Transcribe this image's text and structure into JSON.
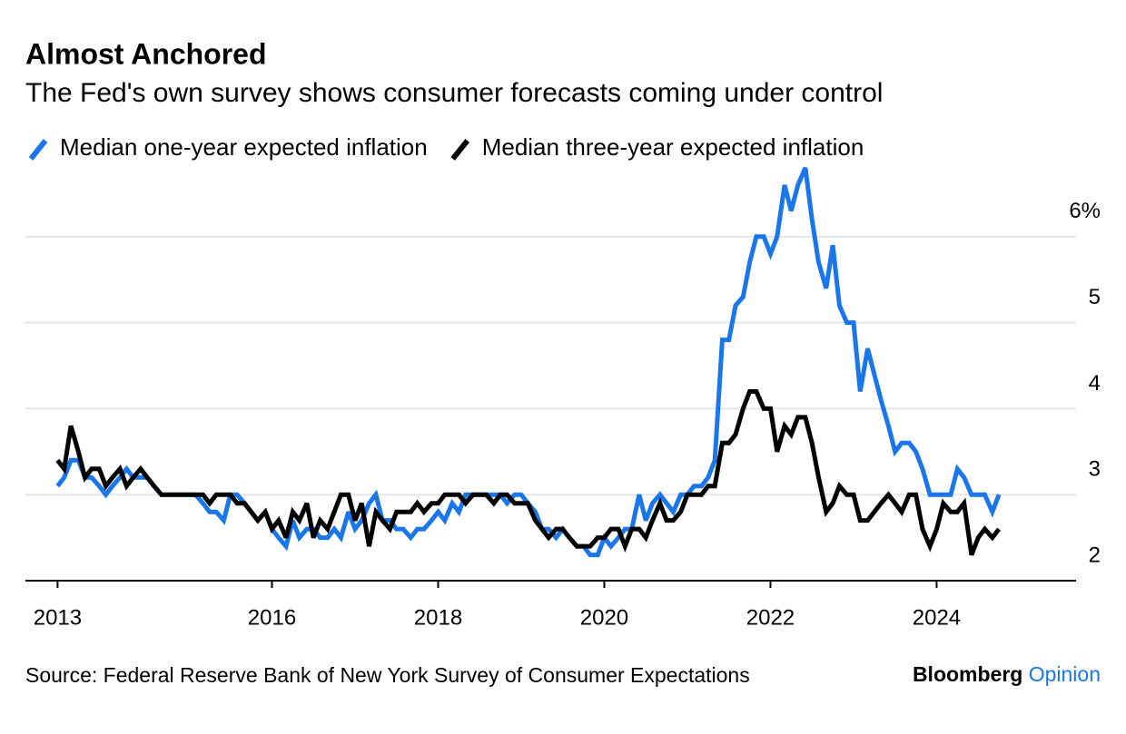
{
  "chart_data": {
    "type": "line",
    "title": "Almost Anchored",
    "subtitle": "The Fed's own survey shows consumer forecasts coming under control",
    "source": "Source: Federal Reserve Bank of New York Survey of Consumer Expectations",
    "brand": [
      "Bloomberg",
      "Opinion"
    ],
    "x": [
      2013.42,
      2013.5,
      2013.58,
      2013.67,
      2013.75,
      2013.83,
      2013.92,
      2014,
      2014.08,
      2014.17,
      2014.25,
      2014.33,
      2014.42,
      2014.5,
      2014.58,
      2014.67,
      2014.75,
      2014.83,
      2014.92,
      2015,
      2015.08,
      2015.17,
      2015.25,
      2015.33,
      2015.42,
      2015.5,
      2015.58,
      2015.67,
      2015.75,
      2015.83,
      2015.92,
      2016,
      2016.08,
      2016.17,
      2016.25,
      2016.33,
      2016.42,
      2016.5,
      2016.58,
      2016.67,
      2016.75,
      2016.83,
      2016.92,
      2017,
      2017.08,
      2017.17,
      2017.25,
      2017.33,
      2017.42,
      2017.5,
      2017.58,
      2017.67,
      2017.75,
      2017.83,
      2017.92,
      2018,
      2018.08,
      2018.17,
      2018.25,
      2018.33,
      2018.42,
      2018.5,
      2018.58,
      2018.67,
      2018.75,
      2018.83,
      2018.92,
      2019,
      2019.08,
      2019.17,
      2019.25,
      2019.33,
      2019.42,
      2019.5,
      2019.58,
      2019.67,
      2019.75,
      2019.83,
      2019.92,
      2020,
      2020.08,
      2020.17,
      2020.25,
      2020.33,
      2020.42,
      2020.5,
      2020.58,
      2020.67,
      2020.75,
      2020.83,
      2020.92,
      2021,
      2021.08,
      2021.17,
      2021.25,
      2021.33,
      2021.42,
      2021.5,
      2021.58,
      2021.67,
      2021.75,
      2021.83,
      2021.92,
      2022,
      2022.08,
      2022.17,
      2022.25,
      2022.33,
      2022.42,
      2022.5,
      2022.58,
      2022.67,
      2022.75,
      2022.83,
      2022.92,
      2023,
      2023.08,
      2023.17,
      2023.25,
      2023.33,
      2023.42,
      2023.5,
      2023.58,
      2023.67,
      2023.75,
      2023.83,
      2023.92,
      2024,
      2024.08,
      2024.17,
      2024.25,
      2024.33,
      2024.42,
      2024.5,
      2024.58,
      2024.67,
      2024.75
    ],
    "series": [
      {
        "name": "Median one-year expected inflation",
        "color": "#1a76eb",
        "values": [
          3.1,
          3.2,
          3.4,
          3.4,
          3.2,
          3.2,
          3.1,
          3.0,
          3.1,
          3.2,
          3.3,
          3.2,
          3.2,
          3.2,
          3.1,
          3.0,
          3.0,
          3.0,
          3.0,
          3.0,
          3.0,
          2.9,
          2.8,
          2.8,
          2.7,
          3.0,
          3.0,
          2.9,
          2.8,
          2.7,
          2.8,
          2.6,
          2.5,
          2.4,
          2.7,
          2.5,
          2.6,
          2.6,
          2.5,
          2.5,
          2.6,
          2.5,
          2.8,
          2.6,
          2.7,
          2.9,
          3.0,
          2.7,
          2.7,
          2.6,
          2.6,
          2.5,
          2.6,
          2.6,
          2.7,
          2.8,
          2.7,
          2.9,
          2.8,
          3.0,
          3.0,
          3.0,
          3.0,
          3.0,
          3.0,
          2.9,
          3.0,
          3.0,
          2.9,
          2.8,
          2.6,
          2.6,
          2.5,
          2.6,
          2.5,
          2.4,
          2.4,
          2.3,
          2.3,
          2.5,
          2.4,
          2.5,
          2.6,
          2.6,
          3.0,
          2.7,
          2.9,
          3.0,
          2.9,
          2.8,
          3.0,
          3.0,
          3.1,
          3.1,
          3.2,
          3.4,
          4.8,
          4.8,
          5.2,
          5.3,
          5.7,
          6.0,
          6.0,
          5.8,
          6.0,
          6.6,
          6.3,
          6.6,
          6.8,
          6.2,
          5.7,
          5.4,
          5.9,
          5.2,
          5.0,
          5.0,
          4.2,
          4.7,
          4.4,
          4.1,
          3.8,
          3.5,
          3.6,
          3.6,
          3.5,
          3.3,
          3.0,
          3.0,
          3.0,
          3.0,
          3.3,
          3.2,
          3.0,
          3.0,
          3.0,
          2.8,
          3.0
        ]
      },
      {
        "name": "Median three-year expected inflation",
        "color": "#000000",
        "values": [
          3.4,
          3.3,
          3.8,
          3.5,
          3.2,
          3.3,
          3.3,
          3.1,
          3.2,
          3.3,
          3.1,
          3.2,
          3.3,
          3.2,
          3.1,
          3.0,
          3.0,
          3.0,
          3.0,
          3.0,
          3.0,
          3.0,
          2.9,
          3.0,
          3.0,
          3.0,
          2.9,
          2.9,
          2.8,
          2.7,
          2.8,
          2.6,
          2.7,
          2.5,
          2.8,
          2.7,
          2.9,
          2.5,
          2.7,
          2.6,
          2.8,
          3.0,
          3.0,
          2.7,
          2.9,
          2.4,
          2.8,
          2.7,
          2.6,
          2.8,
          2.8,
          2.8,
          2.9,
          2.8,
          2.9,
          2.9,
          3.0,
          3.0,
          3.0,
          2.9,
          3.0,
          3.0,
          3.0,
          2.9,
          3.0,
          3.0,
          2.9,
          2.9,
          2.9,
          2.7,
          2.6,
          2.5,
          2.6,
          2.6,
          2.5,
          2.4,
          2.4,
          2.4,
          2.5,
          2.5,
          2.6,
          2.6,
          2.4,
          2.6,
          2.6,
          2.5,
          2.7,
          2.9,
          2.7,
          2.7,
          2.8,
          3.0,
          3.0,
          3.0,
          3.1,
          3.1,
          3.6,
          3.6,
          3.7,
          4.0,
          4.2,
          4.2,
          4.0,
          4.0,
          3.5,
          3.8,
          3.7,
          3.9,
          3.9,
          3.6,
          3.2,
          2.8,
          2.9,
          3.1,
          3.0,
          3.0,
          2.7,
          2.7,
          2.8,
          2.9,
          3.0,
          2.9,
          2.8,
          3.0,
          3.0,
          2.6,
          2.4,
          2.6,
          2.9,
          2.8,
          2.8,
          2.9,
          2.3,
          2.5,
          2.6,
          2.5,
          2.6
        ]
      }
    ],
    "xlim": [
      2013,
      2025.7
    ],
    "xticks": [
      {
        "value": 2013.42,
        "label": "2013"
      },
      2016,
      2018,
      2020,
      2022,
      2024
    ],
    "ylim": [
      2,
      6.8
    ],
    "yticks": [
      2,
      3,
      4,
      5,
      {
        "value": 6,
        "label": "6%"
      }
    ],
    "grid": true
  }
}
